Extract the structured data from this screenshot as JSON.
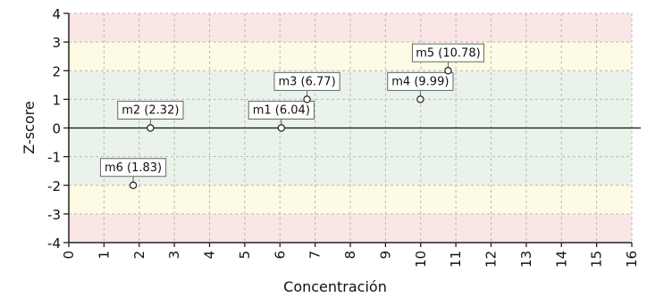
{
  "chart_data": {
    "type": "scatter",
    "xlabel": "Concentración",
    "ylabel": "Z-score",
    "xlim": [
      0,
      16
    ],
    "ylim": [
      -4,
      4
    ],
    "x_ticks": [
      0,
      1,
      2,
      3,
      4,
      5,
      6,
      7,
      8,
      9,
      10,
      11,
      12,
      13,
      14,
      15,
      16
    ],
    "y_ticks": [
      4,
      3,
      2,
      1,
      0,
      -1,
      -2,
      -3,
      -4
    ],
    "grid": true,
    "bands": [
      {
        "from": -4,
        "to": -3,
        "color": "#fbe6e6"
      },
      {
        "from": -3,
        "to": -2,
        "color": "#fdfbe3"
      },
      {
        "from": -2,
        "to": 2,
        "color": "#eaf3ea"
      },
      {
        "from": 2,
        "to": 3,
        "color": "#fdfbe3"
      },
      {
        "from": 3,
        "to": 4,
        "color": "#fbe6e6"
      }
    ],
    "points": [
      {
        "label": "m1 (6.04)",
        "x": 6.04,
        "y": 0
      },
      {
        "label": "m2 (2.32)",
        "x": 2.32,
        "y": 0
      },
      {
        "label": "m3 (6.77)",
        "x": 6.77,
        "y": 1
      },
      {
        "label": "m4 (9.99)",
        "x": 9.99,
        "y": 1
      },
      {
        "label": "m5 (10.78)",
        "x": 10.78,
        "y": 2
      },
      {
        "label": "m6 (1.83)",
        "x": 1.83,
        "y": -2
      }
    ]
  }
}
